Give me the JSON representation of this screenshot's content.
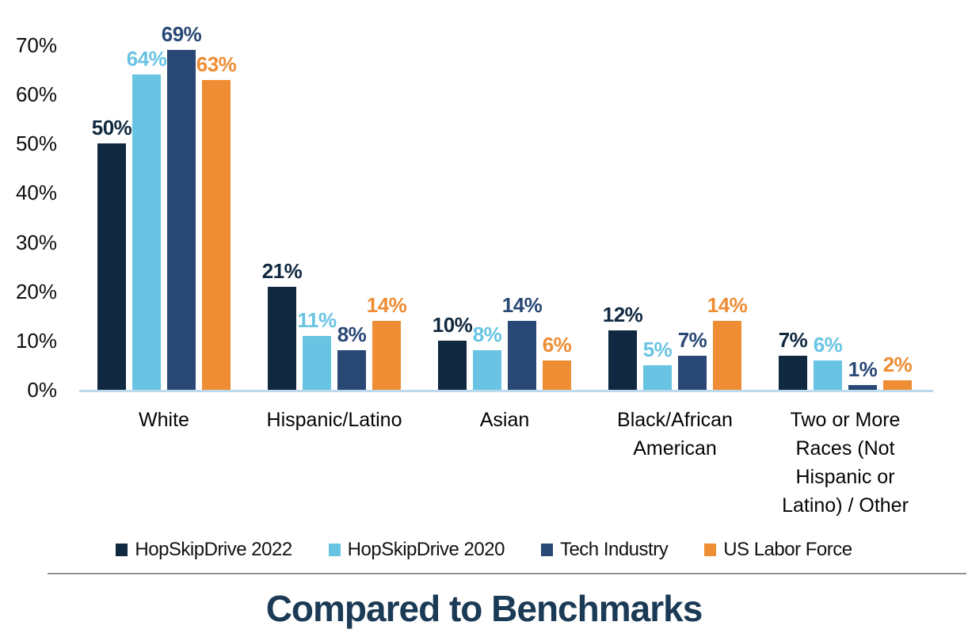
{
  "chart_data": {
    "type": "bar",
    "title": "Compared to Benchmarks",
    "title_color": "#1B3A55",
    "categories": [
      "White",
      "Hispanic/Latino",
      "Asian",
      "Black/African American",
      "Two or More Races (Not Hispanic or Latino) / Other"
    ],
    "series": [
      {
        "name": "HopSkipDrive 2022",
        "color": "#112940",
        "values": [
          50,
          21,
          10,
          12,
          7
        ]
      },
      {
        "name": "HopSkipDrive 2020",
        "color": "#69C4E3",
        "values": [
          64,
          11,
          8,
          5,
          6
        ]
      },
      {
        "name": "Tech Industry",
        "color": "#294875",
        "values": [
          69,
          8,
          14,
          7,
          1
        ]
      },
      {
        "name": "US Labor Force",
        "color": "#EE8D34",
        "values": [
          63,
          14,
          6,
          14,
          2
        ]
      }
    ],
    "value_suffix": "%",
    "y_ticks": [
      "0%",
      "10%",
      "20%",
      "30%",
      "40%",
      "50%",
      "60%",
      "70%"
    ],
    "ylim": [
      0,
      70
    ],
    "grid": false,
    "data_labels": true,
    "legend_position": "bottom",
    "axis_line_color": "#BDD9EE",
    "divider_color": "#909090"
  }
}
